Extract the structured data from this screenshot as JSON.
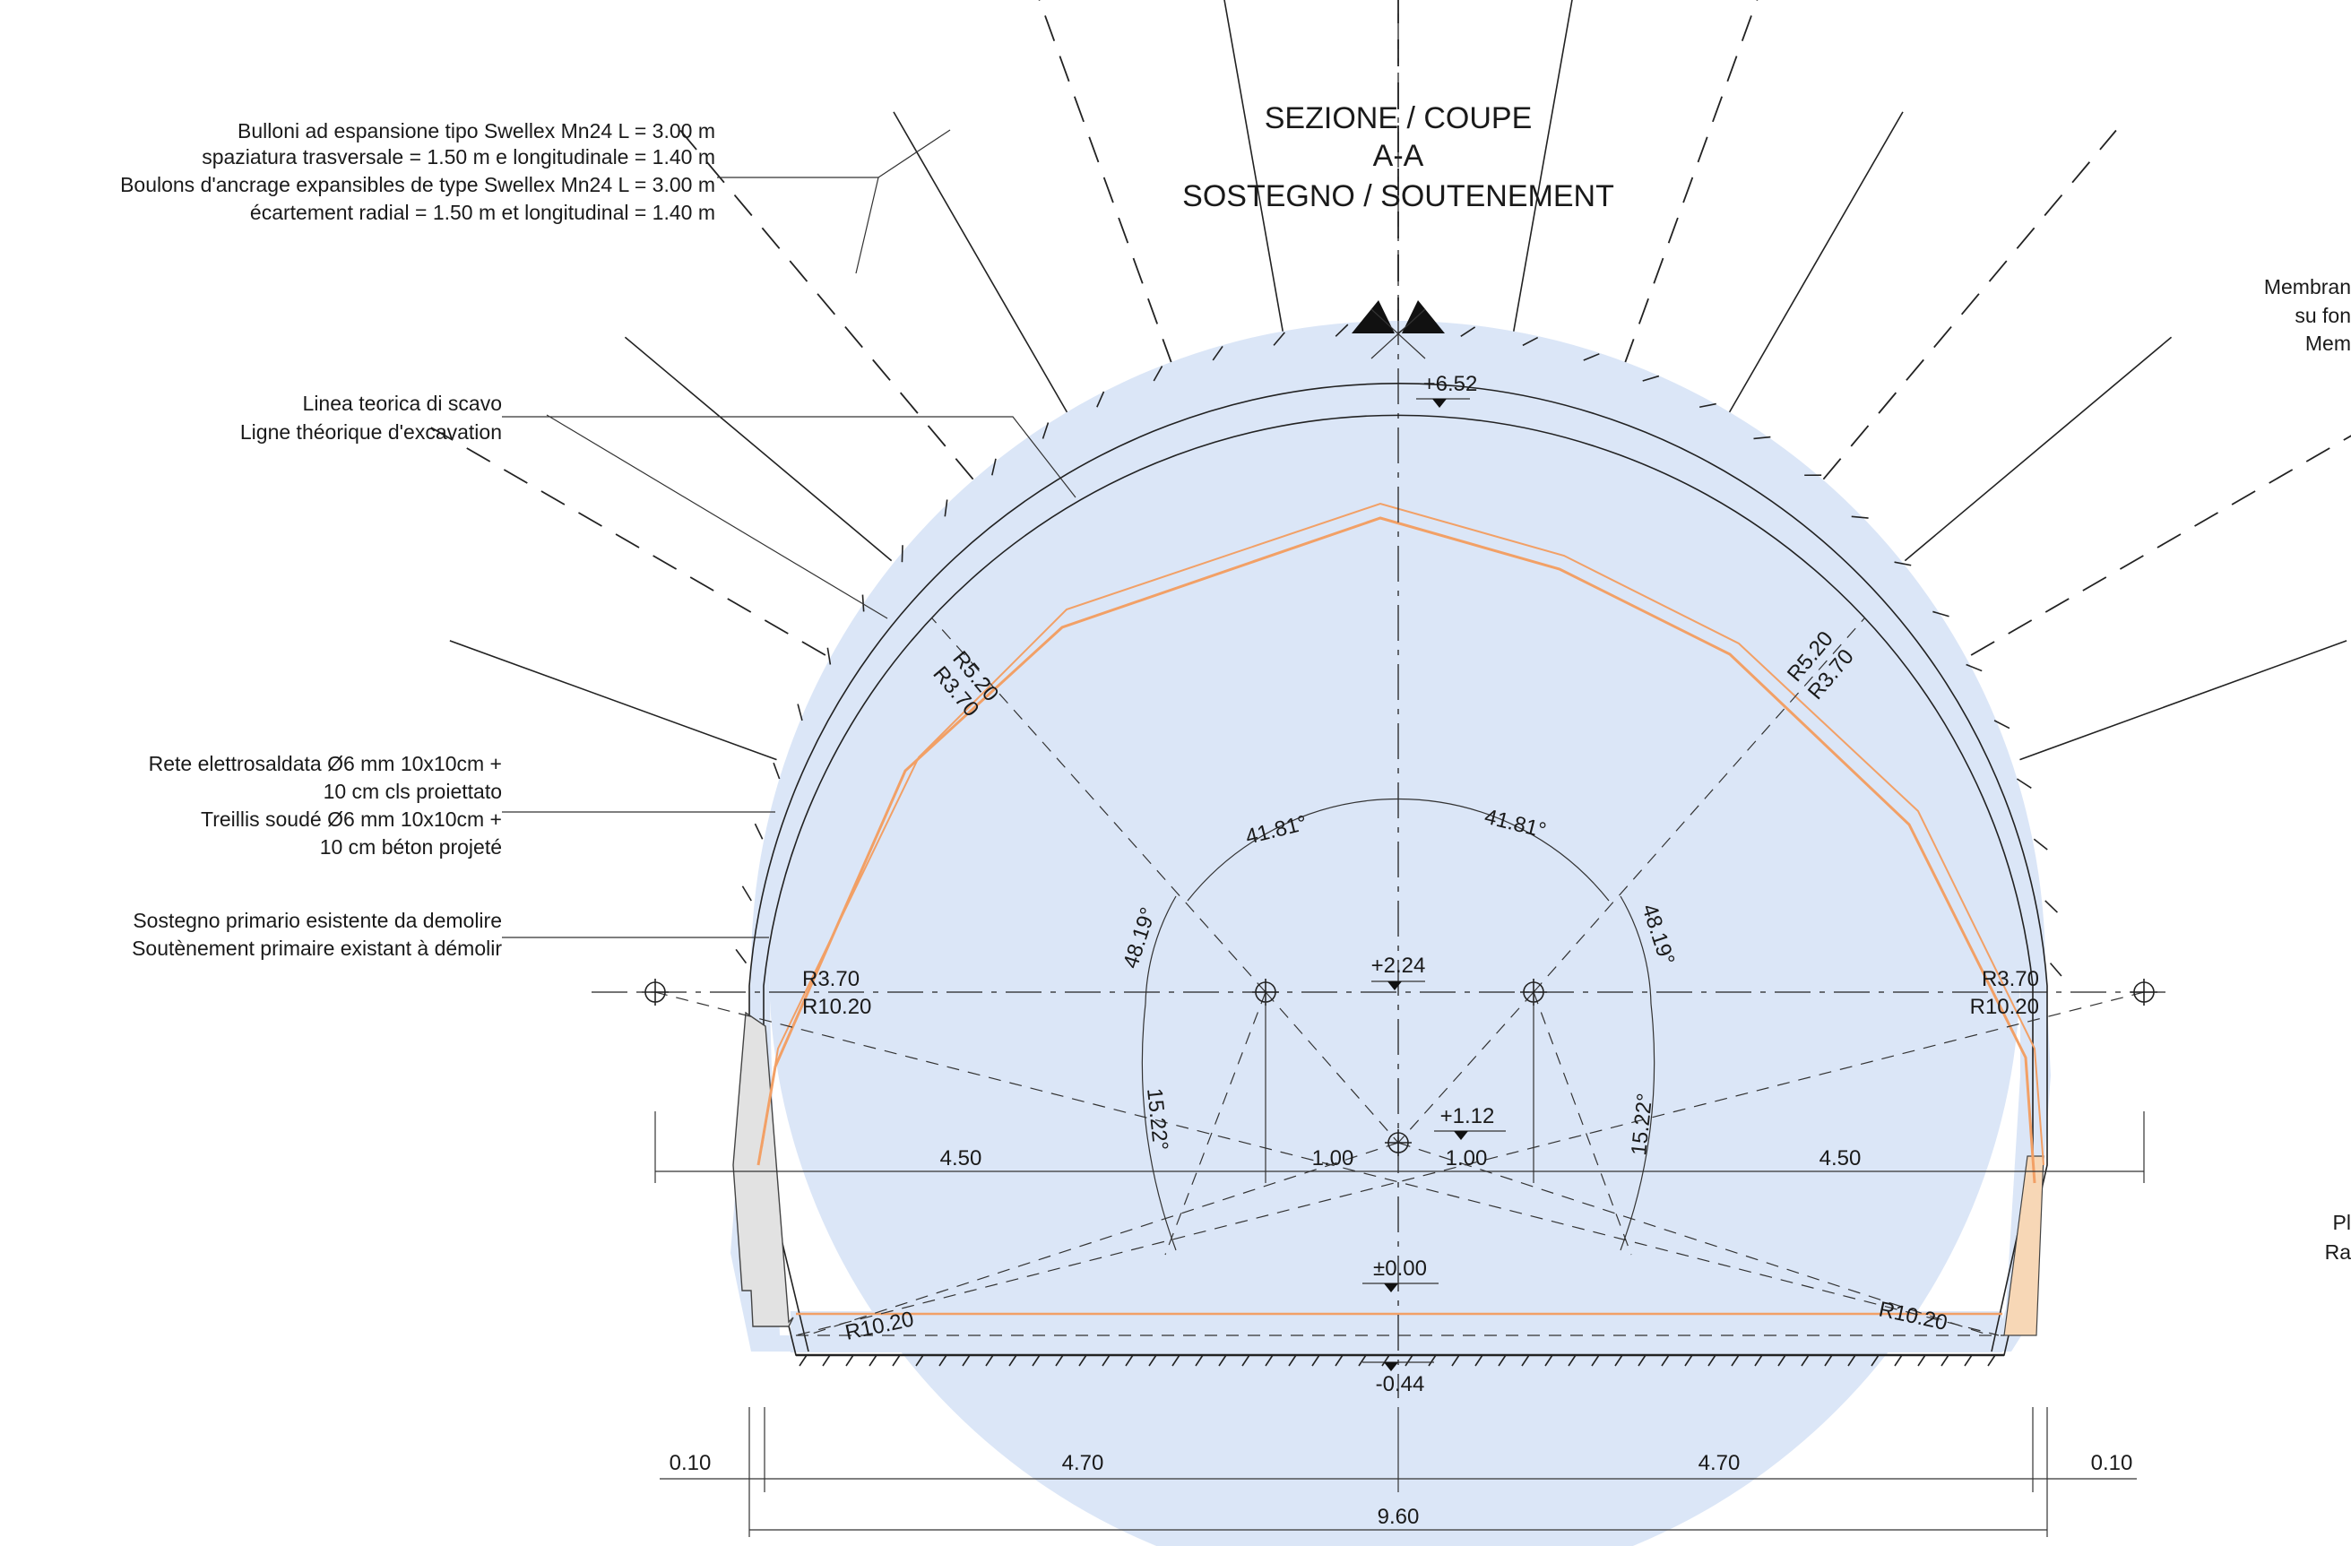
{
  "title": {
    "line1": "SEZIONE / COUPE",
    "line2": "A-A",
    "line3": "SOSTEGNO / SOUTENEMENT"
  },
  "notes": {
    "bolts": [
      "Bulloni ad espansione tipo Swellex Mn24 L = 3.00 m",
      "spaziatura trasversale = 1.50 m e longitudinale = 1.40 m",
      "Boulons d'ancrage expansibles de type Swellex Mn24 L = 3.00 m",
      "écartement radial = 1.50 m et longitudinal = 1.40 m"
    ],
    "excavation_line": [
      "Linea teorica di scavo",
      "Ligne théorique d'excavation"
    ],
    "mesh": [
      "Rete elettrosaldata Ø6 mm 10x10cm +",
      "10 cm cls proiettato",
      "Treillis soudé Ø6 mm 10x10cm +",
      "10 cm béton projeté"
    ],
    "existing_support": [
      "Sostegno primario esistente da demolire",
      "Soutènement primaire existant à démolir"
    ],
    "right_cut_top": [
      "Membran",
      "su fon",
      "Mem"
    ],
    "right_cut_bottom": [
      "Pl",
      "Ra"
    ]
  },
  "levels": {
    "crown": "+6.52",
    "springing": "+2.24",
    "centre": "+1.12",
    "zero": "±0.00",
    "invert": "-0.44"
  },
  "radii": {
    "upper_left_outer": "R5.20",
    "upper_left_inner": "R3.70",
    "upper_right_outer": "R5.20",
    "upper_right_inner": "R3.70",
    "side_left_a": "R3.70",
    "side_left_b": "R10.20",
    "side_right_a": "R3.70",
    "side_right_b": "R10.20",
    "invert_left": "R10.20",
    "invert_right": "R10.20"
  },
  "angles": {
    "upper_left": "41.81°",
    "upper_right": "41.81°",
    "side_left": "48.19°",
    "side_right": "48.19°",
    "lower_left": "15.22°",
    "lower_right": "15.22°"
  },
  "dimensions": {
    "centres_left_outer": "4.50",
    "centres_left_inner": "1.00",
    "centres_right_inner": "1.00",
    "centres_right_outer": "4.50",
    "edge_left": "0.10",
    "half_left": "4.70",
    "half_right": "4.70",
    "edge_right": "0.10",
    "total": "9.60"
  },
  "colors": {
    "lining_fill": "#dbe6f7",
    "existing_support": "#f2a066",
    "line": "#222222"
  }
}
